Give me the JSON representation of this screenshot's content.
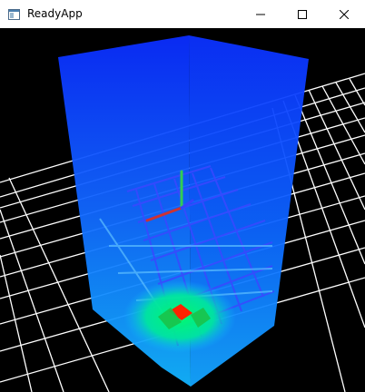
{
  "window": {
    "title": "ReadyApp",
    "icon": "app-window-icon",
    "controls": {
      "minimize": "minimize-icon",
      "maximize": "maximize-icon",
      "close": "close-icon"
    }
  },
  "viewport": {
    "background": "#000000",
    "floor_grid_color": "#ffffff",
    "volume_color": "#1a66ff",
    "inner_grid_color": "#3344ff",
    "hotspot_colors": [
      "#00ff66",
      "#ff2200"
    ],
    "axis_colors": {
      "x": "#cc3333",
      "y": "#33cc55",
      "z": "#3344ff"
    }
  }
}
